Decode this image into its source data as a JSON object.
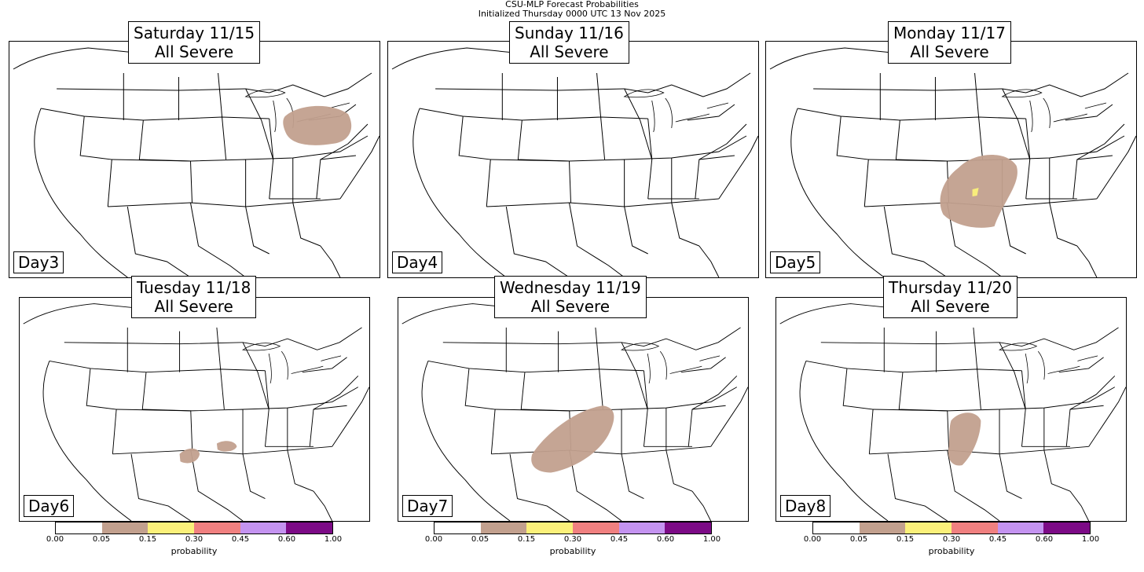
{
  "suptitle": {
    "line1": "CSU-MLP Forecast Probabilities",
    "line2": "Initialized Thursday 0000 UTC 13 Nov 2025"
  },
  "panels": [
    {
      "title": "Saturday 11/15",
      "subtitle": "All Severe",
      "day": "Day3"
    },
    {
      "title": "Sunday 11/16",
      "subtitle": "All Severe",
      "day": "Day4"
    },
    {
      "title": "Monday 11/17",
      "subtitle": "All Severe",
      "day": "Day5"
    },
    {
      "title": "Tuesday 11/18",
      "subtitle": "All Severe",
      "day": "Day6"
    },
    {
      "title": "Wednesday 11/19",
      "subtitle": "All Severe",
      "day": "Day7"
    },
    {
      "title": "Thursday 11/20",
      "subtitle": "All Severe",
      "day": "Day8"
    }
  ],
  "colorbar": {
    "label": "probability",
    "ticks": [
      "0.00",
      "0.05",
      "0.15",
      "0.30",
      "0.45",
      "0.60",
      "1.00"
    ],
    "colors": [
      "#ffffff",
      "#c2a08e",
      "#fbf07a",
      "#f08080",
      "#c493f0",
      "#7c0a86"
    ]
  },
  "colors": {
    "probability_fill": "#c2a08e",
    "probability_highlight": "#fbf07a"
  }
}
